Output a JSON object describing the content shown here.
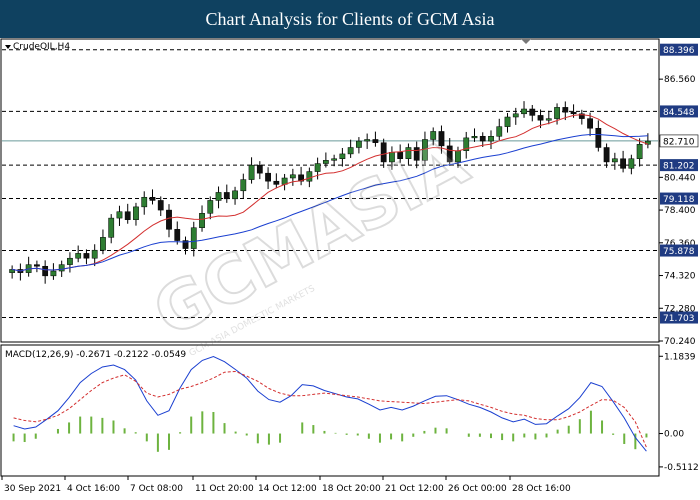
{
  "header": {
    "title": "Chart Analysis for Clients of GCM Asia"
  },
  "watermark": {
    "text": "GCMASIA",
    "subtext": "GCM ASIA DOMESTIC MARKETS"
  },
  "colors": {
    "header_bg": "#0f4160",
    "bull": "#2e7d32",
    "bear": "#111111",
    "ma_fast": "#d32f2f",
    "ma_slow": "#1a3fd0",
    "pill": "#1f3b82",
    "macd_hist": "#6db33f",
    "macd_main": "#1a3fd0",
    "macd_signal": "#d32f2f"
  },
  "chart_data": [
    {
      "type": "candlestick",
      "title": "CrudeOIL,H4",
      "ylim": [
        70.24,
        89.0
      ],
      "y_ticks": [
        "86.560",
        "82.710",
        "80.440",
        "78.400",
        "76.360",
        "74.320",
        "72.280",
        "70.240"
      ],
      "x_ticks": [
        "30 Sep 2021",
        "4 Oct 16:00",
        "7 Oct 08:00",
        "11 Oct 20:00",
        "14 Oct 12:00",
        "18 Oct 20:00",
        "21 Oct 12:00",
        "26 Oct 00:00",
        "28 Oct 16:00"
      ],
      "levels": [
        {
          "label": "88.396",
          "value": 88.396
        },
        {
          "label": "84.548",
          "value": 84.548
        },
        {
          "label": "81.202",
          "value": 81.202
        },
        {
          "label": "79.118",
          "value": 79.118
        },
        {
          "label": "75.878",
          "value": 75.878
        },
        {
          "label": "71.703",
          "value": 71.703
        }
      ],
      "current_price": {
        "label": "82.710",
        "value": 82.71
      },
      "close": [
        74.7,
        74.5,
        75.0,
        74.9,
        74.3,
        74.6,
        75.0,
        75.4,
        75.7,
        75.4,
        75.9,
        76.7,
        77.9,
        78.3,
        77.8,
        78.6,
        79.2,
        79.0,
        78.4,
        77.2,
        76.5,
        76.0,
        77.3,
        78.2,
        79.0,
        79.5,
        79.1,
        79.6,
        80.3,
        81.2,
        80.7,
        80.2,
        80.0,
        80.4,
        80.6,
        80.2,
        80.8,
        81.3,
        81.5,
        81.6,
        81.9,
        82.3,
        82.7,
        82.8,
        82.6,
        81.4,
        82.0,
        81.6,
        82.3,
        81.5,
        82.8,
        83.3,
        82.4,
        81.4,
        82.1,
        82.9,
        83.0,
        82.7,
        83.0,
        83.6,
        84.2,
        84.4,
        84.7,
        84.3,
        84.0,
        84.1,
        84.8,
        84.5,
        84.4,
        84.1,
        83.5,
        82.3,
        81.4,
        81.6,
        81.0,
        81.6,
        82.5,
        82.7
      ]
    },
    {
      "type": "macd",
      "title": "MACD(12,26,9) -0.2671 -0.2122 -0.0549",
      "ylim": [
        -0.62,
        1.28
      ],
      "y_ticks": [
        "1.1839",
        "0.00",
        "-0.5112"
      ],
      "main": [
        0.12,
        0.07,
        0.1,
        0.22,
        0.35,
        0.55,
        0.78,
        0.92,
        1.02,
        1.05,
        0.98,
        0.82,
        0.5,
        0.28,
        0.35,
        0.7,
        0.98,
        1.12,
        1.18,
        1.1,
        0.98,
        0.85,
        0.65,
        0.52,
        0.48,
        0.58,
        0.75,
        0.73,
        0.66,
        0.61,
        0.56,
        0.53,
        0.45,
        0.36,
        0.4,
        0.36,
        0.42,
        0.5,
        0.57,
        0.58,
        0.52,
        0.45,
        0.4,
        0.33,
        0.24,
        0.18,
        0.22,
        0.14,
        0.15,
        0.27,
        0.38,
        0.55,
        0.78,
        0.72,
        0.49,
        0.24,
        -0.06,
        -0.27
      ],
      "signal": [
        0.24,
        0.2,
        0.18,
        0.22,
        0.28,
        0.38,
        0.52,
        0.66,
        0.78,
        0.85,
        0.9,
        0.8,
        0.62,
        0.56,
        0.6,
        0.68,
        0.72,
        0.78,
        0.85,
        0.94,
        0.95,
        0.88,
        0.8,
        0.69,
        0.62,
        0.58,
        0.58,
        0.6,
        0.62,
        0.6,
        0.58,
        0.56,
        0.53,
        0.5,
        0.49,
        0.48,
        0.47,
        0.46,
        0.48,
        0.5,
        0.52,
        0.5,
        0.45,
        0.4,
        0.34,
        0.3,
        0.28,
        0.23,
        0.21,
        0.21,
        0.26,
        0.33,
        0.43,
        0.52,
        0.51,
        0.4,
        0.18,
        -0.21
      ]
    }
  ]
}
